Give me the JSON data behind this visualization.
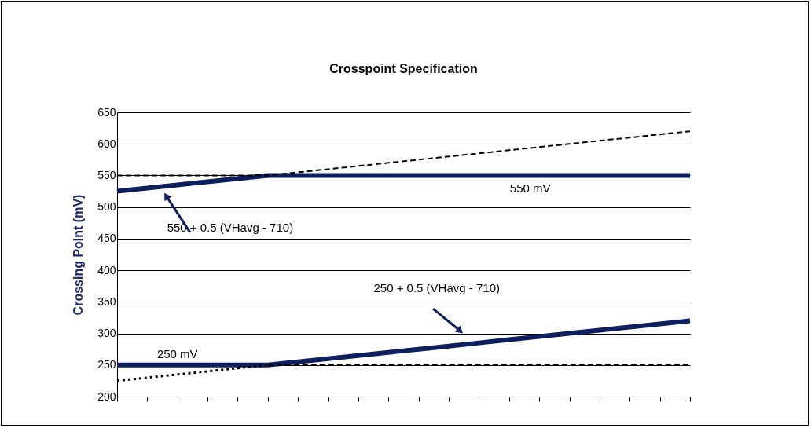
{
  "chart_data": {
    "type": "line",
    "title": "Crosspoint Specification",
    "ylabel": "Crossing Point (mV)",
    "categories": [
      null,
      null,
      null,
      null,
      null,
      null,
      null,
      null,
      null,
      null,
      null,
      null,
      null,
      null,
      null,
      null,
      null,
      null,
      null,
      null
    ],
    "ylim": [
      200,
      650
    ],
    "yticks": [
      200,
      250,
      300,
      350,
      400,
      450,
      500,
      550,
      600,
      650
    ],
    "grid": "y",
    "tick_labels": "y",
    "marker": "none",
    "series": [
      {
        "color": "#0d1f5c",
        "line_style": "solid",
        "values": [
          525,
          530,
          535,
          540,
          545,
          550,
          550,
          550,
          550,
          550,
          550,
          550,
          550,
          550,
          550,
          550,
          550,
          550,
          550,
          550
        ]
      },
      {
        "color": "#0d1f5c",
        "line_style": "solid",
        "values": [
          250,
          250,
          250,
          250,
          250,
          250,
          255,
          260,
          265,
          270,
          275,
          280,
          285,
          290,
          295,
          300,
          305,
          310,
          315,
          320
        ]
      },
      {
        "color": "#000000",
        "line_style": "dashed",
        "values": [
          550,
          550,
          550,
          550,
          550,
          550,
          555,
          560,
          565,
          570,
          575,
          580,
          585,
          590,
          595,
          600,
          605,
          610,
          615,
          620
        ]
      },
      {
        "color": "#000000",
        "line_style": "dashed",
        "values": [
          null,
          null,
          null,
          null,
          null,
          250,
          250,
          250,
          250,
          250,
          250,
          250,
          250,
          250,
          250,
          250,
          250,
          250,
          250,
          250
        ]
      },
      {
        "color": "#000000",
        "line_style": "dotted",
        "values": [
          225,
          230,
          235,
          240,
          245,
          250,
          null,
          null,
          null,
          null,
          null,
          null,
          null,
          null,
          null,
          null,
          null,
          null,
          null,
          null
        ]
      }
    ],
    "annotations": [
      {
        "text": "550 mV",
        "y": 550
      },
      "550 + 0.5 (VHavg - 710)",
      "250 + 0.5 (VHavg - 710)",
      {
        "text": "250 mV",
        "y": 250
      }
    ]
  }
}
